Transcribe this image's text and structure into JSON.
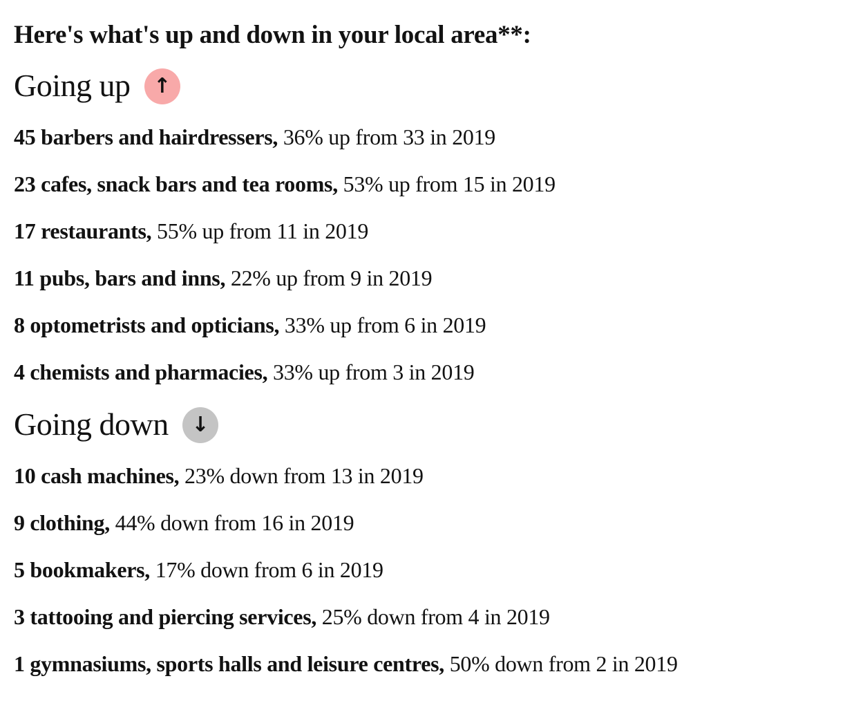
{
  "intro": {
    "text": "Here's what's up and down in your local area**:"
  },
  "colors": {
    "text": "#121212",
    "up_badge": "#f8a9a9",
    "down_badge": "#c4c4c4"
  },
  "sections": [
    {
      "id": "going-up",
      "title": "Going up",
      "arrow": "↑",
      "badge_color": "#f8a9a9",
      "items": [
        {
          "lead": "45 barbers and hairdressers,",
          "detail": " 36% up from 33 in 2019"
        },
        {
          "lead": "23 cafes, snack bars and tea rooms,",
          "detail": " 53% up from 15 in 2019"
        },
        {
          "lead": "17 restaurants,",
          "detail": " 55% up from 11 in 2019"
        },
        {
          "lead": "11 pubs, bars and inns,",
          "detail": " 22% up from 9 in 2019"
        },
        {
          "lead": "8 optometrists and opticians,",
          "detail": " 33% up from 6 in 2019"
        },
        {
          "lead": "4 chemists and pharmacies,",
          "detail": " 33% up from 3 in 2019"
        }
      ]
    },
    {
      "id": "going-down",
      "title": "Going down",
      "arrow": "↓",
      "badge_color": "#c4c4c4",
      "items": [
        {
          "lead": "10 cash machines,",
          "detail": " 23% down from 13 in 2019"
        },
        {
          "lead": "9 clothing,",
          "detail": " 44% down from 16 in 2019"
        },
        {
          "lead": "5 bookmakers,",
          "detail": " 17% down from 6 in 2019"
        },
        {
          "lead": "3 tattooing and piercing services,",
          "detail": " 25% down from 4 in 2019"
        },
        {
          "lead": "1 gymnasiums, sports halls and leisure centres,",
          "detail": " 50% down from 2 in 2019"
        }
      ]
    }
  ]
}
